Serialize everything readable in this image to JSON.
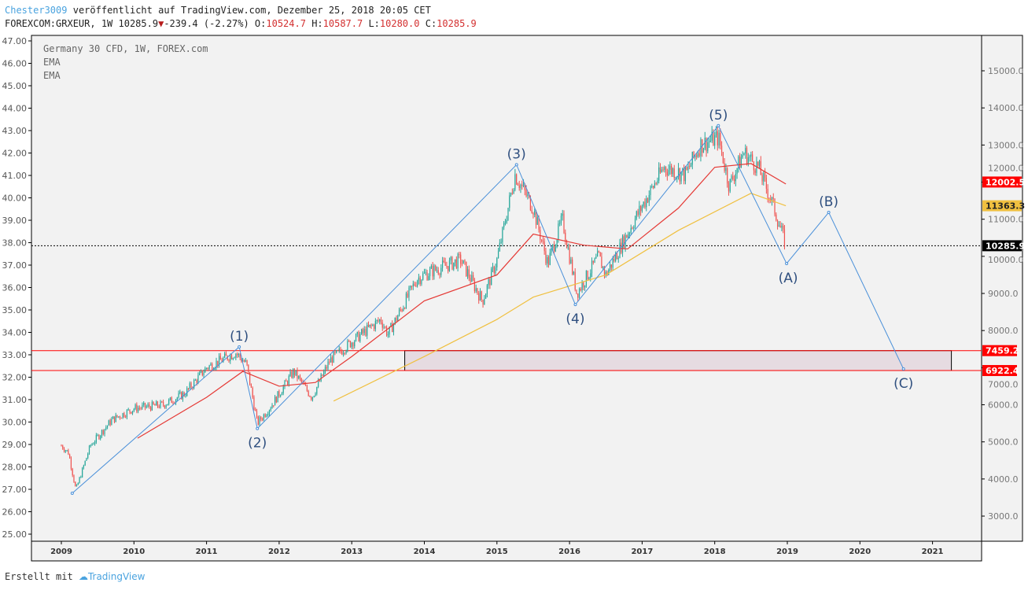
{
  "header": {
    "author": "Chester3009",
    "published": "veröffentlicht auf TradingView.com, Dezember 25, 2018 20:05 CET",
    "symbol": "FOREXCOM:GRXEUR, 1W 10285.9",
    "change": "-239.4 (-2.27%)",
    "o_label": "O:",
    "o": "10524.7",
    "h_label": "H:",
    "h": "10587.7",
    "l_label": "L:",
    "l": "10280.0",
    "c_label": "C:",
    "c": "10285.9"
  },
  "legend": {
    "title": "Germany 30 CFD, 1W, FOREX.com",
    "ema1": "EMA",
    "ema2": "EMA"
  },
  "footer": {
    "made_with": "Erstellt mit",
    "brand": "TradingView"
  },
  "colors": {
    "up": "#26a69a",
    "down": "#ef5350",
    "ema_fast": "#e53935",
    "ema_slow": "#f0c040",
    "wave": "#4a90d9",
    "level": "#ff0000"
  },
  "chart_data": {
    "type": "candlestick",
    "x_ticks": [
      "2009",
      "2010",
      "2011",
      "2012",
      "2013",
      "2014",
      "2015",
      "2016",
      "2017",
      "2018",
      "2019",
      "2020",
      "2021"
    ],
    "right_ticks": [
      "3000.0",
      "4000.0",
      "5000.0",
      "6000.0",
      "7000.0",
      "8000.0",
      "9000.0",
      "10000.0",
      "11000.0",
      "12000.0",
      "13000.0",
      "14000.0",
      "15000.0"
    ],
    "left_ticks": [
      "25.00",
      "26.00",
      "27.00",
      "28.00",
      "29.00",
      "30.00",
      "31.00",
      "32.00",
      "33.00",
      "34.00",
      "35.00",
      "36.00",
      "37.00",
      "38.00",
      "39.00",
      "40.00",
      "41.00",
      "42.00",
      "43.00",
      "44.00",
      "45.00",
      "46.00",
      "47.00"
    ],
    "ylim": [
      2000,
      16000
    ],
    "left_ylim": [
      25,
      47
    ],
    "xlim": [
      2008.6,
      2021.7
    ],
    "price_path": [
      [
        2009.0,
        4900
      ],
      [
        2009.1,
        4700
      ],
      [
        2009.2,
        3700
      ],
      [
        2009.4,
        4900
      ],
      [
        2009.7,
        5600
      ],
      [
        2010.0,
        5900
      ],
      [
        2010.4,
        6000
      ],
      [
        2010.7,
        6300
      ],
      [
        2011.0,
        7000
      ],
      [
        2011.4,
        7400
      ],
      [
        2011.55,
        7100
      ],
      [
        2011.7,
        5500
      ],
      [
        2011.9,
        6000
      ],
      [
        2012.2,
        6900
      ],
      [
        2012.45,
        6200
      ],
      [
        2012.7,
        7200
      ],
      [
        2013.0,
        7700
      ],
      [
        2013.4,
        8300
      ],
      [
        2013.5,
        7900
      ],
      [
        2013.9,
        9400
      ],
      [
        2014.1,
        9600
      ],
      [
        2014.5,
        9900
      ],
      [
        2014.8,
        8800
      ],
      [
        2015.0,
        9900
      ],
      [
        2015.25,
        12200
      ],
      [
        2015.5,
        11300
      ],
      [
        2015.7,
        9800
      ],
      [
        2015.9,
        11000
      ],
      [
        2016.1,
        9000
      ],
      [
        2016.4,
        10000
      ],
      [
        2016.5,
        9500
      ],
      [
        2016.9,
        11000
      ],
      [
        2017.3,
        12400
      ],
      [
        2017.6,
        12200
      ],
      [
        2017.8,
        13000
      ],
      [
        2018.05,
        13200
      ],
      [
        2018.2,
        11900
      ],
      [
        2018.4,
        12800
      ],
      [
        2018.6,
        12400
      ],
      [
        2018.8,
        11400
      ],
      [
        2018.98,
        10290
      ]
    ],
    "ema_fast": [
      [
        2010.05,
        5100
      ],
      [
        2011.0,
        6200
      ],
      [
        2011.5,
        6900
      ],
      [
        2012.0,
        6500
      ],
      [
        2012.5,
        6600
      ],
      [
        2013.0,
        7300
      ],
      [
        2014.0,
        8800
      ],
      [
        2015.0,
        9500
      ],
      [
        2015.5,
        10600
      ],
      [
        2016.2,
        10300
      ],
      [
        2016.8,
        10200
      ],
      [
        2017.5,
        11300
      ],
      [
        2018.0,
        12400
      ],
      [
        2018.5,
        12500
      ],
      [
        2018.98,
        11950
      ]
    ],
    "ema_slow": [
      [
        2012.75,
        6100
      ],
      [
        2014.0,
        7300
      ],
      [
        2015.0,
        8300
      ],
      [
        2015.5,
        8900
      ],
      [
        2016.5,
        9500
      ],
      [
        2017.5,
        10700
      ],
      [
        2018.5,
        11700
      ],
      [
        2018.98,
        11363
      ]
    ],
    "waves": [
      {
        "label": "",
        "x": 2009.15,
        "y": 3616
      },
      {
        "label": "(1)",
        "x": 2011.45,
        "y": 7560
      },
      {
        "label": "(2)",
        "x": 2011.7,
        "y": 5360
      },
      {
        "label": "(3)",
        "x": 2015.27,
        "y": 12470
      },
      {
        "label": "(4)",
        "x": 2016.08,
        "y": 8700
      },
      {
        "label": "(5)",
        "x": 2018.05,
        "y": 13520
      },
      {
        "label": "(A)",
        "x": 2018.99,
        "y": 9806
      },
      {
        "label": "(B)",
        "x": 2019.57,
        "y": 11184
      },
      {
        "label": "(C)",
        "x": 2020.6,
        "y": 6965
      }
    ],
    "zone": {
      "x0": 2013.73,
      "x1": 2021.26,
      "y0": 6922.4,
      "y1": 7459.2
    },
    "levels": [
      {
        "value": 7459.2,
        "label": "7459.2",
        "color": "#ff0000"
      },
      {
        "value": 6922.4,
        "label": "6922.4",
        "color": "#ff0000"
      }
    ],
    "price_labels": [
      {
        "label": "12002.5",
        "value": 12002.5,
        "bg": "#ff0000",
        "fg": "#fff"
      },
      {
        "label": "11363.3",
        "value": 11363.3,
        "bg": "#f0c040",
        "fg": "#222"
      },
      {
        "label": "10285.9",
        "value": 10285.9,
        "bg": "#000",
        "fg": "#fff"
      }
    ],
    "last": 10285.9
  }
}
